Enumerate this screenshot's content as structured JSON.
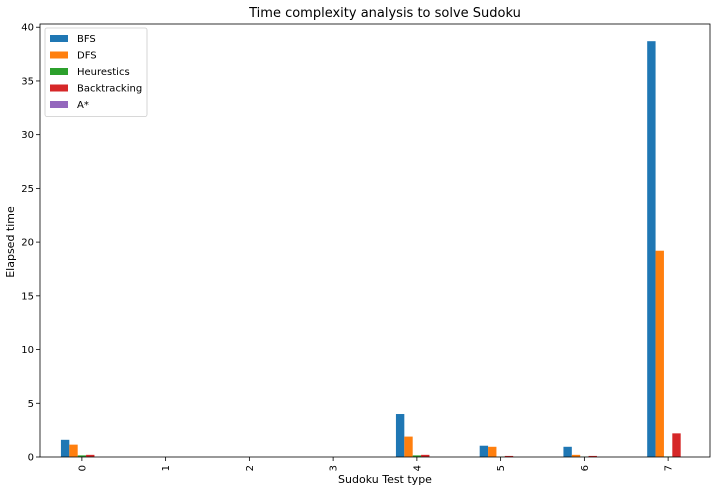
{
  "chart_data": {
    "type": "bar",
    "title": "Time complexity analysis to solve Sudoku",
    "xlabel": "Sudoku Test type",
    "ylabel": "Elapsed time",
    "categories": [
      "0",
      "1",
      "2",
      "3",
      "4",
      "5",
      "6",
      "7"
    ],
    "ylim": [
      0,
      40.3
    ],
    "yticks": [
      0,
      5,
      10,
      15,
      20,
      25,
      30,
      35,
      40
    ],
    "grid": false,
    "legend_position": "top-left",
    "series": [
      {
        "name": "BFS",
        "color": "#1f77b4",
        "values": [
          1.6,
          0,
          0,
          0,
          4.0,
          1.05,
          0.95,
          38.7
        ]
      },
      {
        "name": "DFS",
        "color": "#ff7f0e",
        "values": [
          1.15,
          0,
          0,
          0,
          1.9,
          0.95,
          0.2,
          19.2
        ]
      },
      {
        "name": "Heurestics",
        "color": "#2ca02c",
        "values": [
          0.15,
          0,
          0,
          0,
          0.15,
          0.03,
          0.03,
          0.05
        ]
      },
      {
        "name": "Backtracking",
        "color": "#d62728",
        "values": [
          0.2,
          0,
          0,
          0,
          0.2,
          0.1,
          0.1,
          2.2
        ]
      },
      {
        "name": "A*",
        "color": "#9467bd",
        "values": [
          0,
          0,
          0,
          0,
          0,
          0,
          0,
          0
        ]
      }
    ]
  }
}
